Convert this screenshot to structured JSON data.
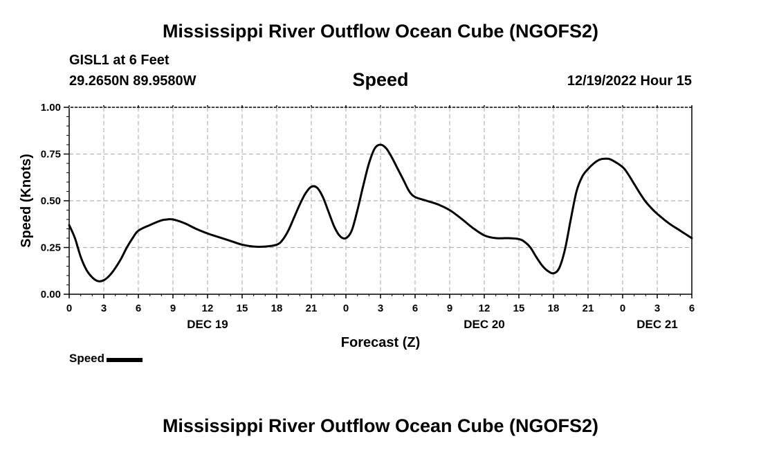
{
  "page": {
    "title": "Mississippi River Outflow Ocean Cube (NGOFS2)",
    "title_repeat": "Mississippi River Outflow Ocean Cube (NGOFS2)",
    "station": "GISL1 at 6 Feet",
    "coordinates": "29.2650N  89.9580W",
    "datetime": "12/19/2022 Hour 15"
  },
  "chart_data": {
    "type": "line",
    "title": "Speed",
    "xlabel": "Forecast (Z)",
    "ylabel": "Speed (Knots)",
    "x_unit": "hours from 2022-12-19 00Z",
    "xlim": [
      0,
      54
    ],
    "ylim": [
      0,
      1.0
    ],
    "y_ticks": [
      0,
      0.25,
      0.5,
      0.75,
      1.0
    ],
    "y_tick_labels": [
      "0.00",
      "0.25",
      "0.50",
      "0.75",
      "1.00"
    ],
    "x_ticks": [
      0,
      3,
      6,
      9,
      12,
      15,
      18,
      21,
      24,
      27,
      30,
      33,
      36,
      39,
      42,
      45,
      48,
      51,
      54
    ],
    "x_tick_labels": [
      "0",
      "3",
      "6",
      "9",
      "12",
      "15",
      "18",
      "21",
      "0",
      "3",
      "6",
      "9",
      "12",
      "15",
      "18",
      "21",
      "0",
      "3",
      "6"
    ],
    "date_labels": [
      {
        "x": 12,
        "label": "DEC 19"
      },
      {
        "x": 36,
        "label": "DEC 20"
      },
      {
        "x": 51,
        "label": "DEC 21"
      }
    ],
    "grid": true,
    "legend_position": "bottom-left",
    "color": "#000000",
    "series": [
      {
        "name": "Speed",
        "x": [
          0,
          0.5,
          1,
          1.5,
          2,
          2.5,
          3,
          3.5,
          4,
          4.5,
          5,
          5.5,
          6,
          7,
          8,
          8.5,
          9,
          10,
          11,
          12,
          13,
          14,
          15,
          16,
          17,
          18,
          18.5,
          19,
          19.5,
          20,
          20.5,
          21,
          21.5,
          22,
          22.5,
          23,
          23.5,
          24,
          24.5,
          25,
          25.5,
          26,
          26.5,
          27,
          27.5,
          28,
          28.5,
          29,
          29.5,
          30,
          31,
          32,
          33,
          34,
          35,
          36,
          37,
          38,
          39,
          39.5,
          40,
          40.5,
          41,
          41.5,
          42,
          42.5,
          43,
          43.5,
          44,
          44.5,
          45,
          45.5,
          46,
          46.5,
          47,
          48,
          48.5,
          49,
          49.5,
          50,
          50.5,
          51,
          52,
          53,
          54
        ],
        "y": [
          0.37,
          0.3,
          0.2,
          0.13,
          0.09,
          0.07,
          0.075,
          0.1,
          0.14,
          0.19,
          0.25,
          0.3,
          0.34,
          0.37,
          0.395,
          0.4,
          0.4,
          0.38,
          0.35,
          0.325,
          0.305,
          0.285,
          0.265,
          0.255,
          0.255,
          0.265,
          0.29,
          0.34,
          0.41,
          0.48,
          0.54,
          0.575,
          0.57,
          0.52,
          0.44,
          0.36,
          0.31,
          0.3,
          0.34,
          0.45,
          0.58,
          0.7,
          0.78,
          0.8,
          0.78,
          0.73,
          0.67,
          0.61,
          0.55,
          0.52,
          0.5,
          0.48,
          0.45,
          0.405,
          0.355,
          0.315,
          0.3,
          0.3,
          0.295,
          0.28,
          0.25,
          0.2,
          0.155,
          0.125,
          0.112,
          0.14,
          0.24,
          0.4,
          0.55,
          0.63,
          0.67,
          0.7,
          0.72,
          0.725,
          0.72,
          0.68,
          0.64,
          0.59,
          0.54,
          0.495,
          0.46,
          0.43,
          0.38,
          0.34,
          0.3
        ]
      }
    ]
  }
}
